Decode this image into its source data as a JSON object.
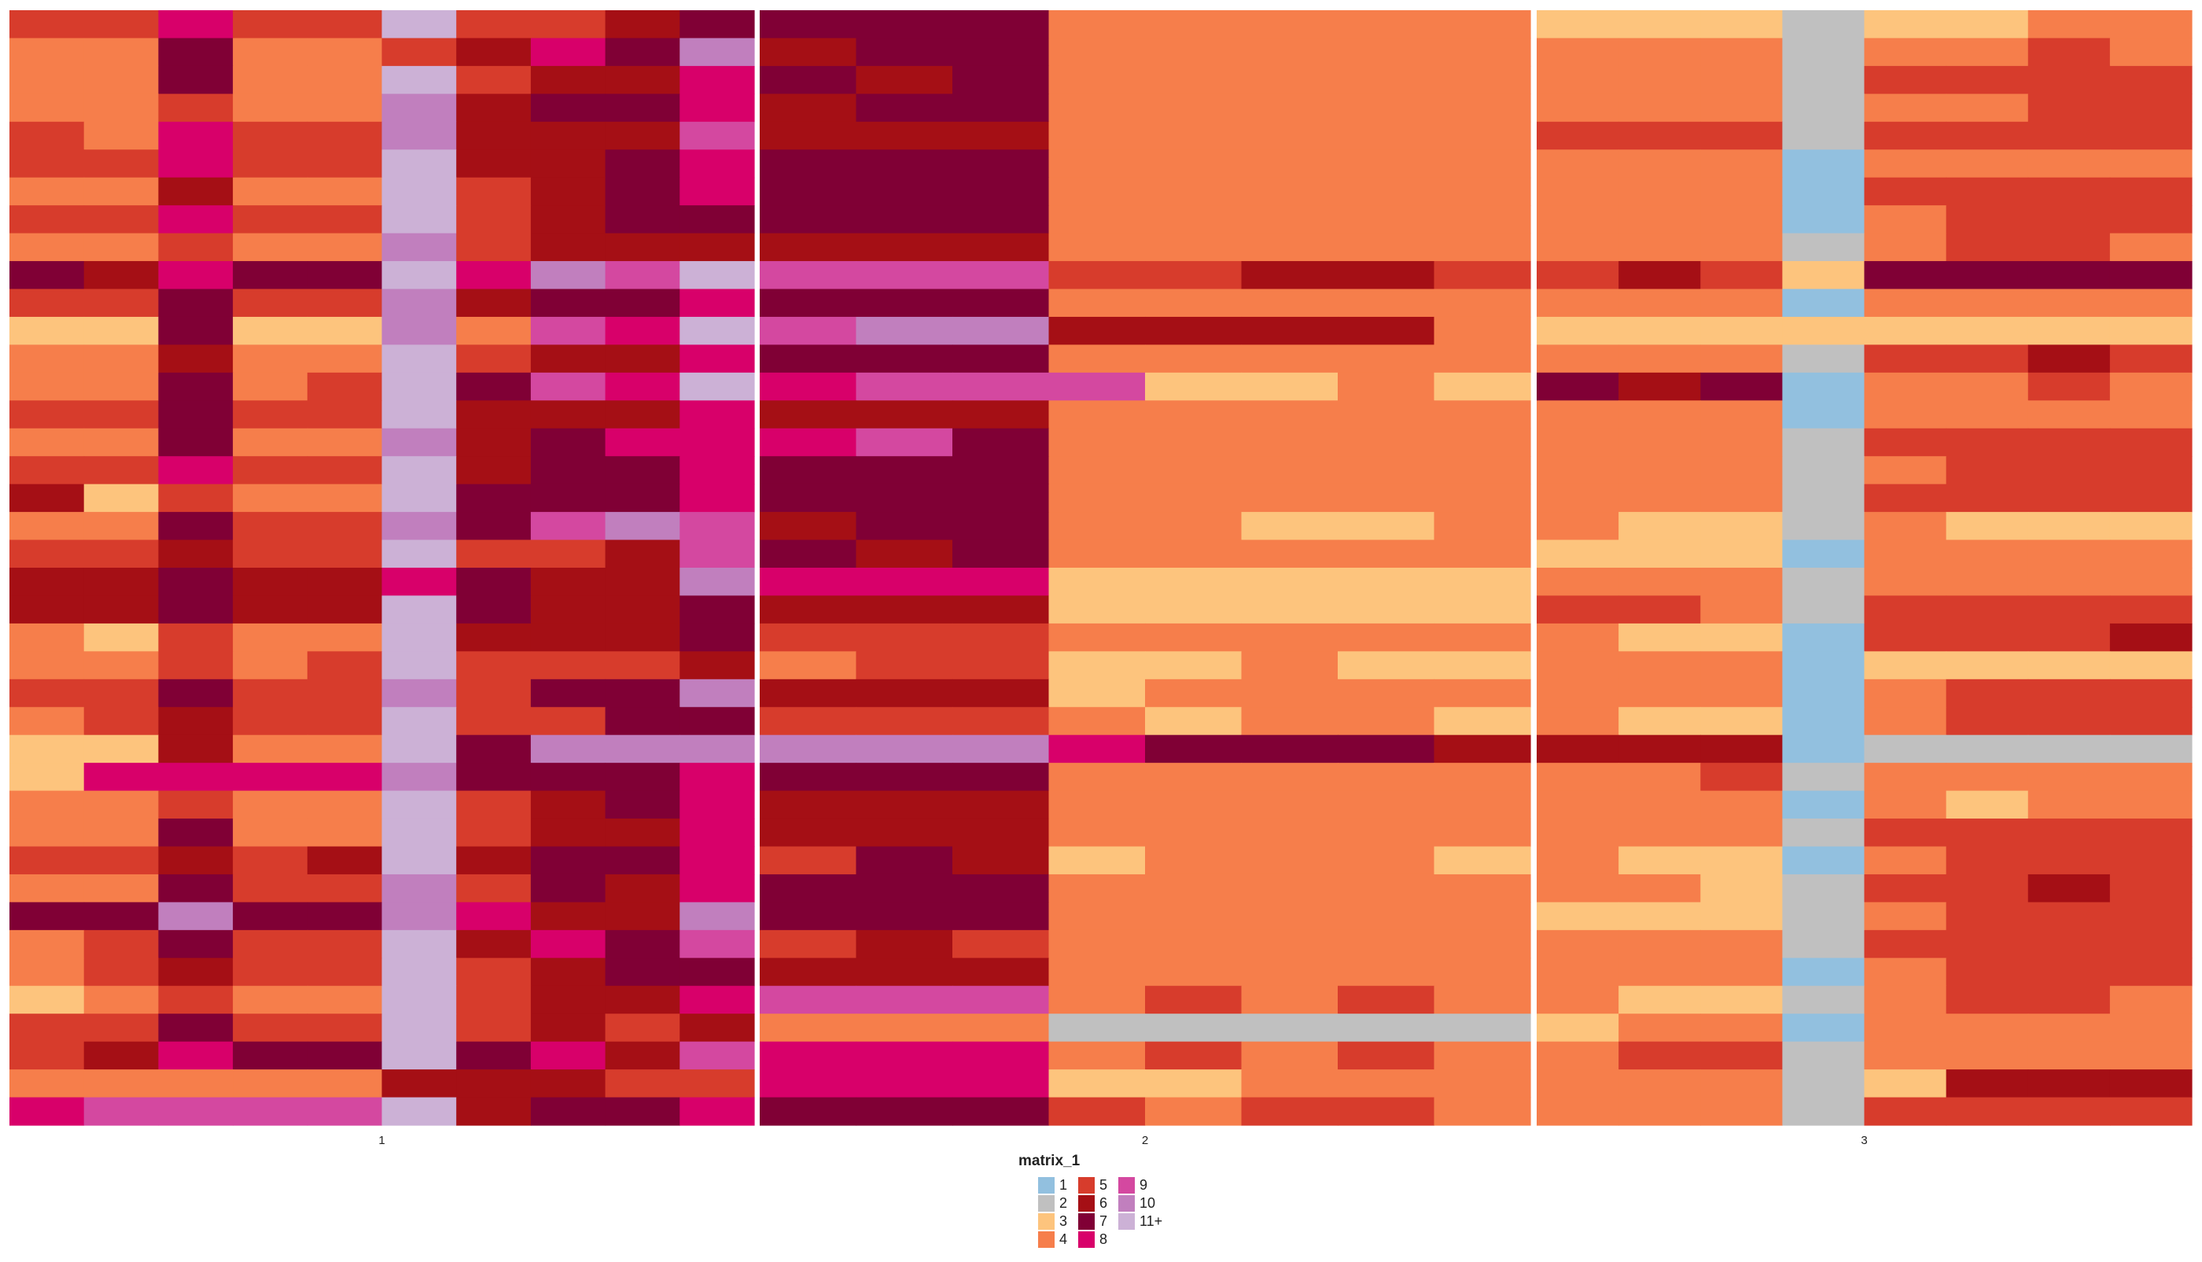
{
  "chart_data": {
    "type": "heatmap",
    "legend_title": "matrix_1",
    "categories": [
      "1",
      "2",
      "3",
      "4",
      "5",
      "6",
      "7",
      "8",
      "9",
      "10",
      "11+"
    ],
    "colors": [
      "#92c0df",
      "#c0c0c0",
      "#fdc47d",
      "#f67e4b",
      "#d73c2c",
      "#a50f15",
      "#800035",
      "#d8006a",
      "#d448a0",
      "#c17fbe",
      "#ccb1d6"
    ],
    "panels": [
      {
        "label": "1",
        "values": [
          [
            5,
            5,
            8,
            5,
            5,
            11,
            5,
            5,
            6,
            7
          ],
          [
            4,
            4,
            7,
            4,
            4,
            5,
            6,
            8,
            7,
            10
          ],
          [
            4,
            4,
            7,
            4,
            4,
            11,
            5,
            6,
            6,
            8
          ],
          [
            4,
            4,
            5,
            4,
            4,
            10,
            6,
            7,
            7,
            8
          ],
          [
            5,
            4,
            8,
            5,
            5,
            10,
            6,
            6,
            6,
            9
          ],
          [
            5,
            5,
            8,
            5,
            5,
            11,
            6,
            6,
            7,
            8
          ],
          [
            4,
            4,
            6,
            4,
            4,
            11,
            5,
            6,
            7,
            8
          ],
          [
            5,
            5,
            8,
            5,
            5,
            11,
            5,
            6,
            7,
            7
          ],
          [
            4,
            4,
            5,
            4,
            4,
            10,
            5,
            6,
            6,
            6
          ],
          [
            7,
            6,
            8,
            7,
            7,
            11,
            8,
            10,
            9,
            11
          ],
          [
            5,
            5,
            7,
            5,
            5,
            10,
            6,
            7,
            7,
            8
          ],
          [
            3,
            3,
            7,
            3,
            3,
            10,
            4,
            9,
            8,
            11
          ],
          [
            4,
            4,
            6,
            4,
            4,
            11,
            5,
            6,
            6,
            8
          ],
          [
            4,
            4,
            7,
            4,
            5,
            11,
            7,
            9,
            8,
            11
          ],
          [
            5,
            5,
            7,
            5,
            5,
            11,
            6,
            6,
            6,
            8
          ],
          [
            4,
            4,
            7,
            4,
            4,
            10,
            6,
            7,
            8,
            8
          ],
          [
            5,
            5,
            8,
            5,
            5,
            11,
            6,
            7,
            7,
            8
          ],
          [
            6,
            3,
            5,
            4,
            4,
            11,
            7,
            7,
            7,
            8
          ],
          [
            4,
            4,
            7,
            5,
            5,
            10,
            7,
            9,
            10,
            9
          ],
          [
            5,
            5,
            6,
            5,
            5,
            11,
            5,
            5,
            6,
            9
          ],
          [
            6,
            6,
            7,
            6,
            6,
            8,
            7,
            6,
            6,
            10
          ],
          [
            6,
            6,
            7,
            6,
            6,
            11,
            7,
            6,
            6,
            7
          ],
          [
            4,
            3,
            5,
            4,
            4,
            11,
            6,
            6,
            6,
            7
          ],
          [
            4,
            4,
            5,
            4,
            5,
            11,
            5,
            5,
            5,
            6
          ],
          [
            5,
            5,
            7,
            5,
            5,
            10,
            5,
            7,
            7,
            10
          ],
          [
            4,
            5,
            6,
            5,
            5,
            11,
            5,
            5,
            7,
            7
          ],
          [
            3,
            3,
            6,
            4,
            4,
            11,
            7,
            10,
            10,
            10
          ],
          [
            3,
            8,
            8,
            8,
            8,
            10,
            7,
            7,
            7,
            8
          ],
          [
            4,
            4,
            5,
            4,
            4,
            11,
            5,
            6,
            7,
            8
          ],
          [
            4,
            4,
            7,
            4,
            4,
            11,
            5,
            6,
            6,
            8
          ],
          [
            5,
            5,
            6,
            5,
            6,
            11,
            6,
            7,
            7,
            8
          ],
          [
            4,
            4,
            7,
            5,
            5,
            10,
            5,
            7,
            6,
            8
          ],
          [
            7,
            7,
            10,
            7,
            7,
            10,
            8,
            6,
            6,
            10
          ],
          [
            4,
            5,
            7,
            5,
            5,
            11,
            6,
            8,
            7,
            9
          ],
          [
            4,
            5,
            6,
            5,
            5,
            11,
            5,
            6,
            7,
            7
          ],
          [
            3,
            4,
            5,
            4,
            4,
            11,
            5,
            6,
            6,
            8
          ],
          [
            5,
            5,
            7,
            5,
            5,
            11,
            5,
            6,
            5,
            6
          ],
          [
            5,
            6,
            8,
            7,
            7,
            11,
            7,
            8,
            6,
            9
          ],
          [
            4,
            4,
            4,
            4,
            4,
            6,
            6,
            6,
            5,
            5
          ],
          [
            8,
            9,
            9,
            9,
            9,
            11,
            6,
            7,
            7,
            8
          ]
        ]
      },
      {
        "label": "2",
        "values": [
          [
            7,
            7,
            7,
            4,
            4,
            4,
            4,
            4
          ],
          [
            6,
            7,
            7,
            4,
            4,
            4,
            4,
            4
          ],
          [
            7,
            6,
            7,
            4,
            4,
            4,
            4,
            4
          ],
          [
            6,
            7,
            7,
            4,
            4,
            4,
            4,
            4
          ],
          [
            6,
            6,
            6,
            4,
            4,
            4,
            4,
            4
          ],
          [
            7,
            7,
            7,
            4,
            4,
            4,
            4,
            4
          ],
          [
            7,
            7,
            7,
            4,
            4,
            4,
            4,
            4
          ],
          [
            7,
            7,
            7,
            4,
            4,
            4,
            4,
            4
          ],
          [
            6,
            6,
            6,
            4,
            4,
            4,
            4,
            4
          ],
          [
            9,
            9,
            9,
            5,
            5,
            6,
            6,
            5
          ],
          [
            7,
            7,
            7,
            4,
            4,
            4,
            4,
            4
          ],
          [
            9,
            10,
            10,
            6,
            6,
            6,
            6,
            4
          ],
          [
            7,
            7,
            7,
            4,
            4,
            4,
            4,
            4
          ],
          [
            8,
            9,
            9,
            9,
            3,
            3,
            4,
            3
          ],
          [
            6,
            6,
            6,
            4,
            4,
            4,
            4,
            4
          ],
          [
            8,
            9,
            7,
            4,
            4,
            4,
            4,
            4
          ],
          [
            7,
            7,
            7,
            4,
            4,
            4,
            4,
            4
          ],
          [
            7,
            7,
            7,
            4,
            4,
            4,
            4,
            4
          ],
          [
            6,
            7,
            7,
            4,
            4,
            3,
            3,
            4
          ],
          [
            7,
            6,
            7,
            4,
            4,
            4,
            4,
            4
          ],
          [
            8,
            8,
            8,
            3,
            3,
            3,
            3,
            3
          ],
          [
            6,
            6,
            6,
            3,
            3,
            3,
            3,
            3
          ],
          [
            5,
            5,
            5,
            4,
            4,
            4,
            4,
            4
          ],
          [
            4,
            5,
            5,
            3,
            3,
            4,
            3,
            3
          ],
          [
            6,
            6,
            6,
            3,
            4,
            4,
            4,
            4
          ],
          [
            5,
            5,
            5,
            4,
            3,
            4,
            4,
            3
          ],
          [
            10,
            10,
            10,
            8,
            7,
            7,
            7,
            6
          ],
          [
            7,
            7,
            7,
            4,
            4,
            4,
            4,
            4
          ],
          [
            6,
            6,
            6,
            4,
            4,
            4,
            4,
            4
          ],
          [
            6,
            6,
            6,
            4,
            4,
            4,
            4,
            4
          ],
          [
            5,
            7,
            6,
            3,
            4,
            4,
            4,
            3
          ],
          [
            7,
            7,
            7,
            4,
            4,
            4,
            4,
            4
          ],
          [
            7,
            7,
            7,
            4,
            4,
            4,
            4,
            4
          ],
          [
            5,
            6,
            5,
            4,
            4,
            4,
            4,
            4
          ],
          [
            6,
            6,
            6,
            4,
            4,
            4,
            4,
            4
          ],
          [
            9,
            9,
            9,
            4,
            5,
            4,
            5,
            4
          ],
          [
            4,
            4,
            4,
            2,
            2,
            2,
            2,
            2
          ],
          [
            8,
            8,
            8,
            4,
            5,
            4,
            5,
            4
          ],
          [
            8,
            8,
            8,
            3,
            3,
            4,
            4,
            4
          ],
          [
            7,
            7,
            7,
            5,
            4,
            5,
            5,
            4
          ]
        ]
      },
      {
        "label": "3",
        "values": [
          [
            3,
            3,
            3,
            2,
            3,
            3,
            4,
            4
          ],
          [
            4,
            4,
            4,
            2,
            4,
            4,
            5,
            4
          ],
          [
            4,
            4,
            4,
            2,
            5,
            5,
            5,
            5
          ],
          [
            4,
            4,
            4,
            2,
            4,
            4,
            5,
            5
          ],
          [
            5,
            5,
            5,
            2,
            5,
            5,
            5,
            5
          ],
          [
            4,
            4,
            4,
            1,
            4,
            4,
            4,
            4
          ],
          [
            4,
            4,
            4,
            1,
            5,
            5,
            5,
            5
          ],
          [
            4,
            4,
            4,
            1,
            4,
            5,
            5,
            5
          ],
          [
            4,
            4,
            4,
            2,
            4,
            5,
            5,
            4
          ],
          [
            5,
            6,
            5,
            3,
            7,
            7,
            7,
            7
          ],
          [
            4,
            4,
            4,
            1,
            4,
            4,
            4,
            4
          ],
          [
            3,
            3,
            3,
            3,
            3,
            3,
            3,
            3
          ],
          [
            4,
            4,
            4,
            2,
            5,
            5,
            6,
            5
          ],
          [
            7,
            6,
            7,
            1,
            4,
            4,
            5,
            4
          ],
          [
            4,
            4,
            4,
            1,
            4,
            4,
            4,
            4
          ],
          [
            4,
            4,
            4,
            2,
            5,
            5,
            5,
            5
          ],
          [
            4,
            4,
            4,
            2,
            4,
            5,
            5,
            5
          ],
          [
            4,
            4,
            4,
            2,
            5,
            5,
            5,
            5
          ],
          [
            4,
            3,
            3,
            2,
            4,
            3,
            3,
            3
          ],
          [
            3,
            3,
            3,
            1,
            4,
            4,
            4,
            4
          ],
          [
            4,
            4,
            4,
            2,
            4,
            4,
            4,
            4
          ],
          [
            5,
            5,
            4,
            2,
            5,
            5,
            5,
            5
          ],
          [
            4,
            3,
            3,
            1,
            5,
            5,
            5,
            6
          ],
          [
            4,
            4,
            4,
            1,
            3,
            3,
            3,
            3
          ],
          [
            4,
            4,
            4,
            1,
            4,
            5,
            5,
            5
          ],
          [
            4,
            3,
            3,
            1,
            4,
            5,
            5,
            5
          ],
          [
            6,
            6,
            6,
            1,
            2,
            2,
            2,
            2
          ],
          [
            4,
            4,
            5,
            2,
            4,
            4,
            4,
            4
          ],
          [
            4,
            4,
            4,
            1,
            4,
            3,
            4,
            4
          ],
          [
            4,
            4,
            4,
            2,
            5,
            5,
            5,
            5
          ],
          [
            4,
            3,
            3,
            1,
            4,
            5,
            5,
            5
          ],
          [
            4,
            4,
            3,
            2,
            5,
            5,
            6,
            5
          ],
          [
            3,
            3,
            3,
            2,
            4,
            5,
            5,
            5
          ],
          [
            4,
            4,
            4,
            2,
            5,
            5,
            5,
            5
          ],
          [
            4,
            4,
            4,
            1,
            4,
            5,
            5,
            5
          ],
          [
            4,
            3,
            3,
            2,
            4,
            5,
            5,
            4
          ],
          [
            3,
            4,
            4,
            1,
            4,
            4,
            4,
            4
          ],
          [
            4,
            5,
            5,
            2,
            4,
            4,
            4,
            4
          ],
          [
            4,
            4,
            4,
            2,
            3,
            6,
            6,
            6
          ],
          [
            4,
            4,
            4,
            2,
            5,
            5,
            5,
            5
          ]
        ]
      }
    ]
  }
}
